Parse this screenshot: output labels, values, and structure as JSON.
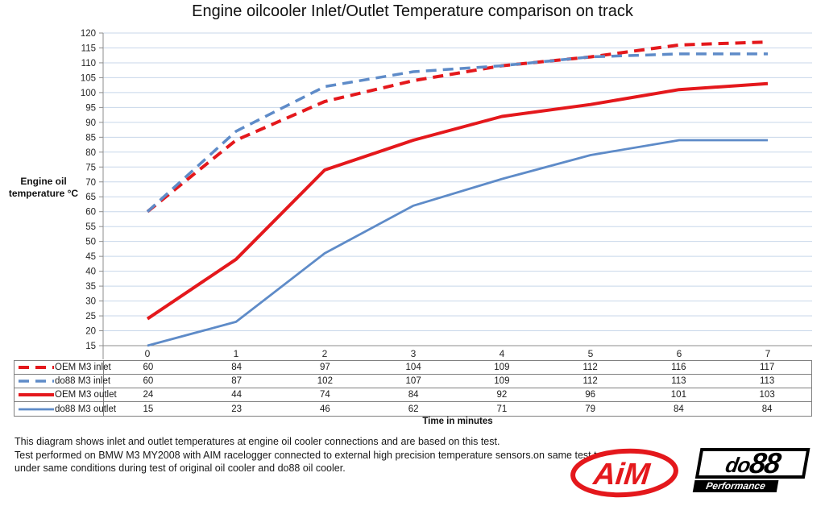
{
  "title": "Engine oilcooler Inlet/Outlet Temperature comparison on track",
  "y_axis_label": {
    "line1": "Engine oil",
    "line2": "temperature °C"
  },
  "x_axis_label": "Time in minutes",
  "chart_data": {
    "type": "line",
    "title": "Engine oilcooler Inlet/Outlet Temperature comparison on track",
    "xlabel": "Time in minutes",
    "ylabel": "Engine oil temperature °C",
    "ylim": [
      15,
      120
    ],
    "ytick_step": 5,
    "grid": true,
    "legend_position": "table-left",
    "categories": [
      "0",
      "1",
      "2",
      "3",
      "4",
      "5",
      "6",
      "7"
    ],
    "series": [
      {
        "name": "OEM M3 inlet",
        "values": [
          60,
          84,
          97,
          104,
          109,
          112,
          116,
          117
        ],
        "color": "#E4181C",
        "style": "dashed",
        "width": 4
      },
      {
        "name": "do88 M3 inlet",
        "values": [
          60,
          87,
          102,
          107,
          109,
          112,
          113,
          113
        ],
        "color": "#5E8BC8",
        "style": "dashed",
        "width": 3.5
      },
      {
        "name": "OEM M3 outlet",
        "values": [
          24,
          44,
          74,
          84,
          92,
          96,
          101,
          103
        ],
        "color": "#E4181C",
        "style": "solid",
        "width": 4
      },
      {
        "name": "do88 M3 outlet",
        "values": [
          15,
          23,
          46,
          62,
          71,
          79,
          84,
          84
        ],
        "color": "#5E8BC8",
        "style": "solid",
        "width": 2.8
      }
    ],
    "colors": {
      "grid": "#C8D7EA",
      "axis": "#8C8C8C"
    }
  },
  "caption": {
    "line1": "This diagram shows inlet and outlet temperatures at engine oil cooler connections and are based on this test.",
    "line2": "Test performed on BMW M3 MY2008 with AIM racelogger connected to external high precision temperature sensors.on same test track",
    "line3": "under same conditions during test of original oil cooler and do88 oil cooler."
  },
  "logos": {
    "aim_text": "AiM",
    "aim_color": "#E4181C",
    "do88_prefix": "do",
    "do88_suffix": "88",
    "do88_sub": "Performance"
  }
}
